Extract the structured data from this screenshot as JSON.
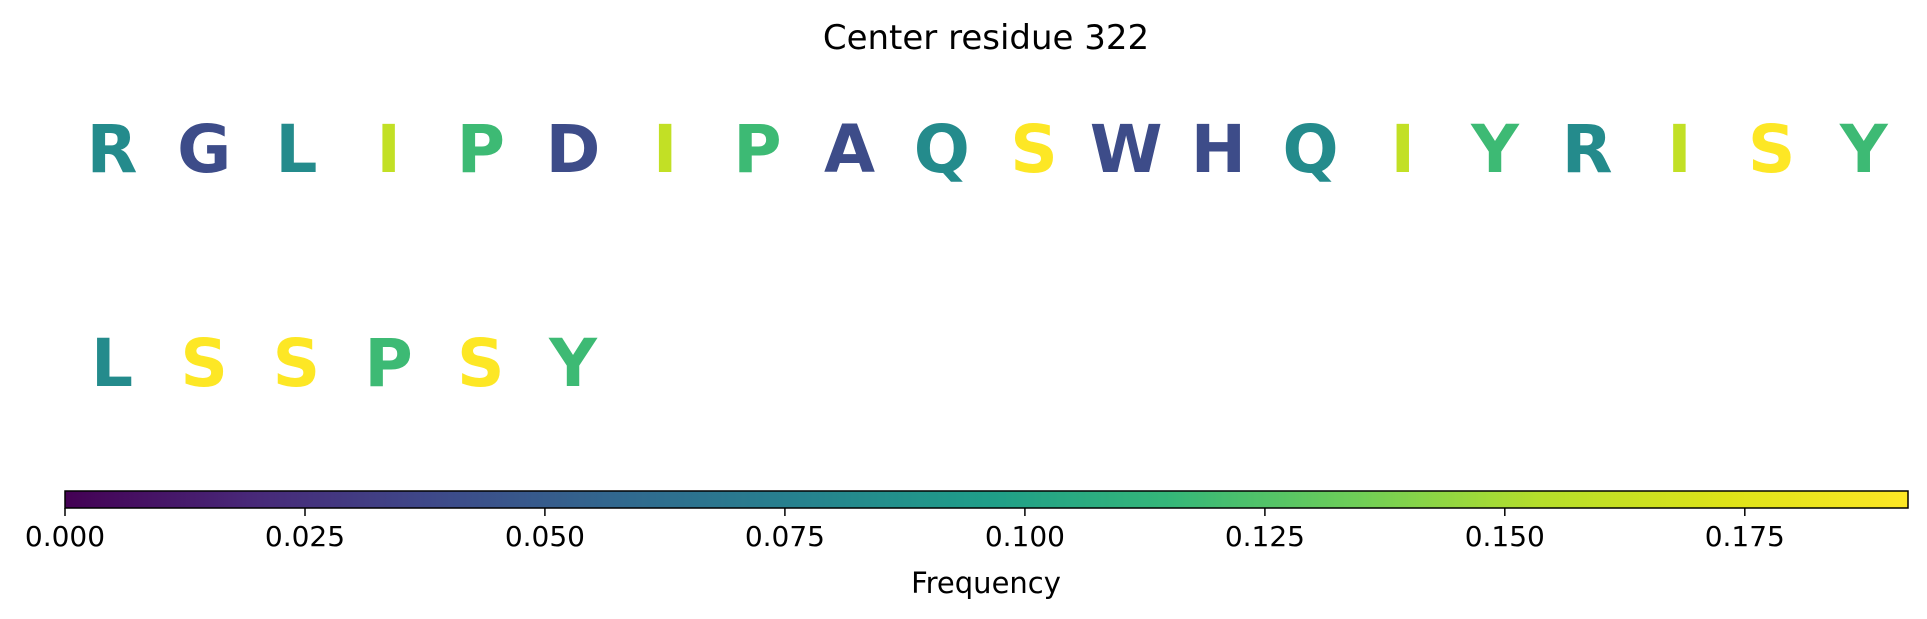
{
  "chart_data": {
    "type": "heatmap",
    "title": "Center residue 322",
    "residues": [
      {
        "letter": "R",
        "value": 0.083
      },
      {
        "letter": "G",
        "value": 0.04
      },
      {
        "letter": "L",
        "value": 0.083
      },
      {
        "letter": "I",
        "value": 0.16
      },
      {
        "letter": "P",
        "value": 0.118
      },
      {
        "letter": "D",
        "value": 0.04
      },
      {
        "letter": "I",
        "value": 0.16
      },
      {
        "letter": "P",
        "value": 0.118
      },
      {
        "letter": "A",
        "value": 0.04
      },
      {
        "letter": "Q",
        "value": 0.083
      },
      {
        "letter": "S",
        "value": 0.192
      },
      {
        "letter": "W",
        "value": 0.04
      },
      {
        "letter": "H",
        "value": 0.04
      },
      {
        "letter": "Q",
        "value": 0.083
      },
      {
        "letter": "I",
        "value": 0.16
      },
      {
        "letter": "Y",
        "value": 0.118
      },
      {
        "letter": "R",
        "value": 0.083
      },
      {
        "letter": "I",
        "value": 0.16
      },
      {
        "letter": "S",
        "value": 0.192
      },
      {
        "letter": "Y",
        "value": 0.118
      },
      {
        "letter": "L",
        "value": 0.083
      },
      {
        "letter": "S",
        "value": 0.192
      },
      {
        "letter": "S",
        "value": 0.192
      },
      {
        "letter": "P",
        "value": 0.118
      },
      {
        "letter": "S",
        "value": 0.192
      },
      {
        "letter": "Y",
        "value": 0.118
      }
    ],
    "per_row": 20,
    "colormap": "viridis",
    "colorbar": {
      "min": 0,
      "max": 0.192,
      "ticks": [
        0.0,
        0.025,
        0.05,
        0.075,
        0.1,
        0.125,
        0.15,
        0.175
      ],
      "tick_labels": [
        "0.000",
        "0.025",
        "0.050",
        "0.075",
        "0.100",
        "0.125",
        "0.150",
        "0.175"
      ],
      "label": "Frequency",
      "orientation": "horizontal",
      "placement": "bottom"
    }
  }
}
